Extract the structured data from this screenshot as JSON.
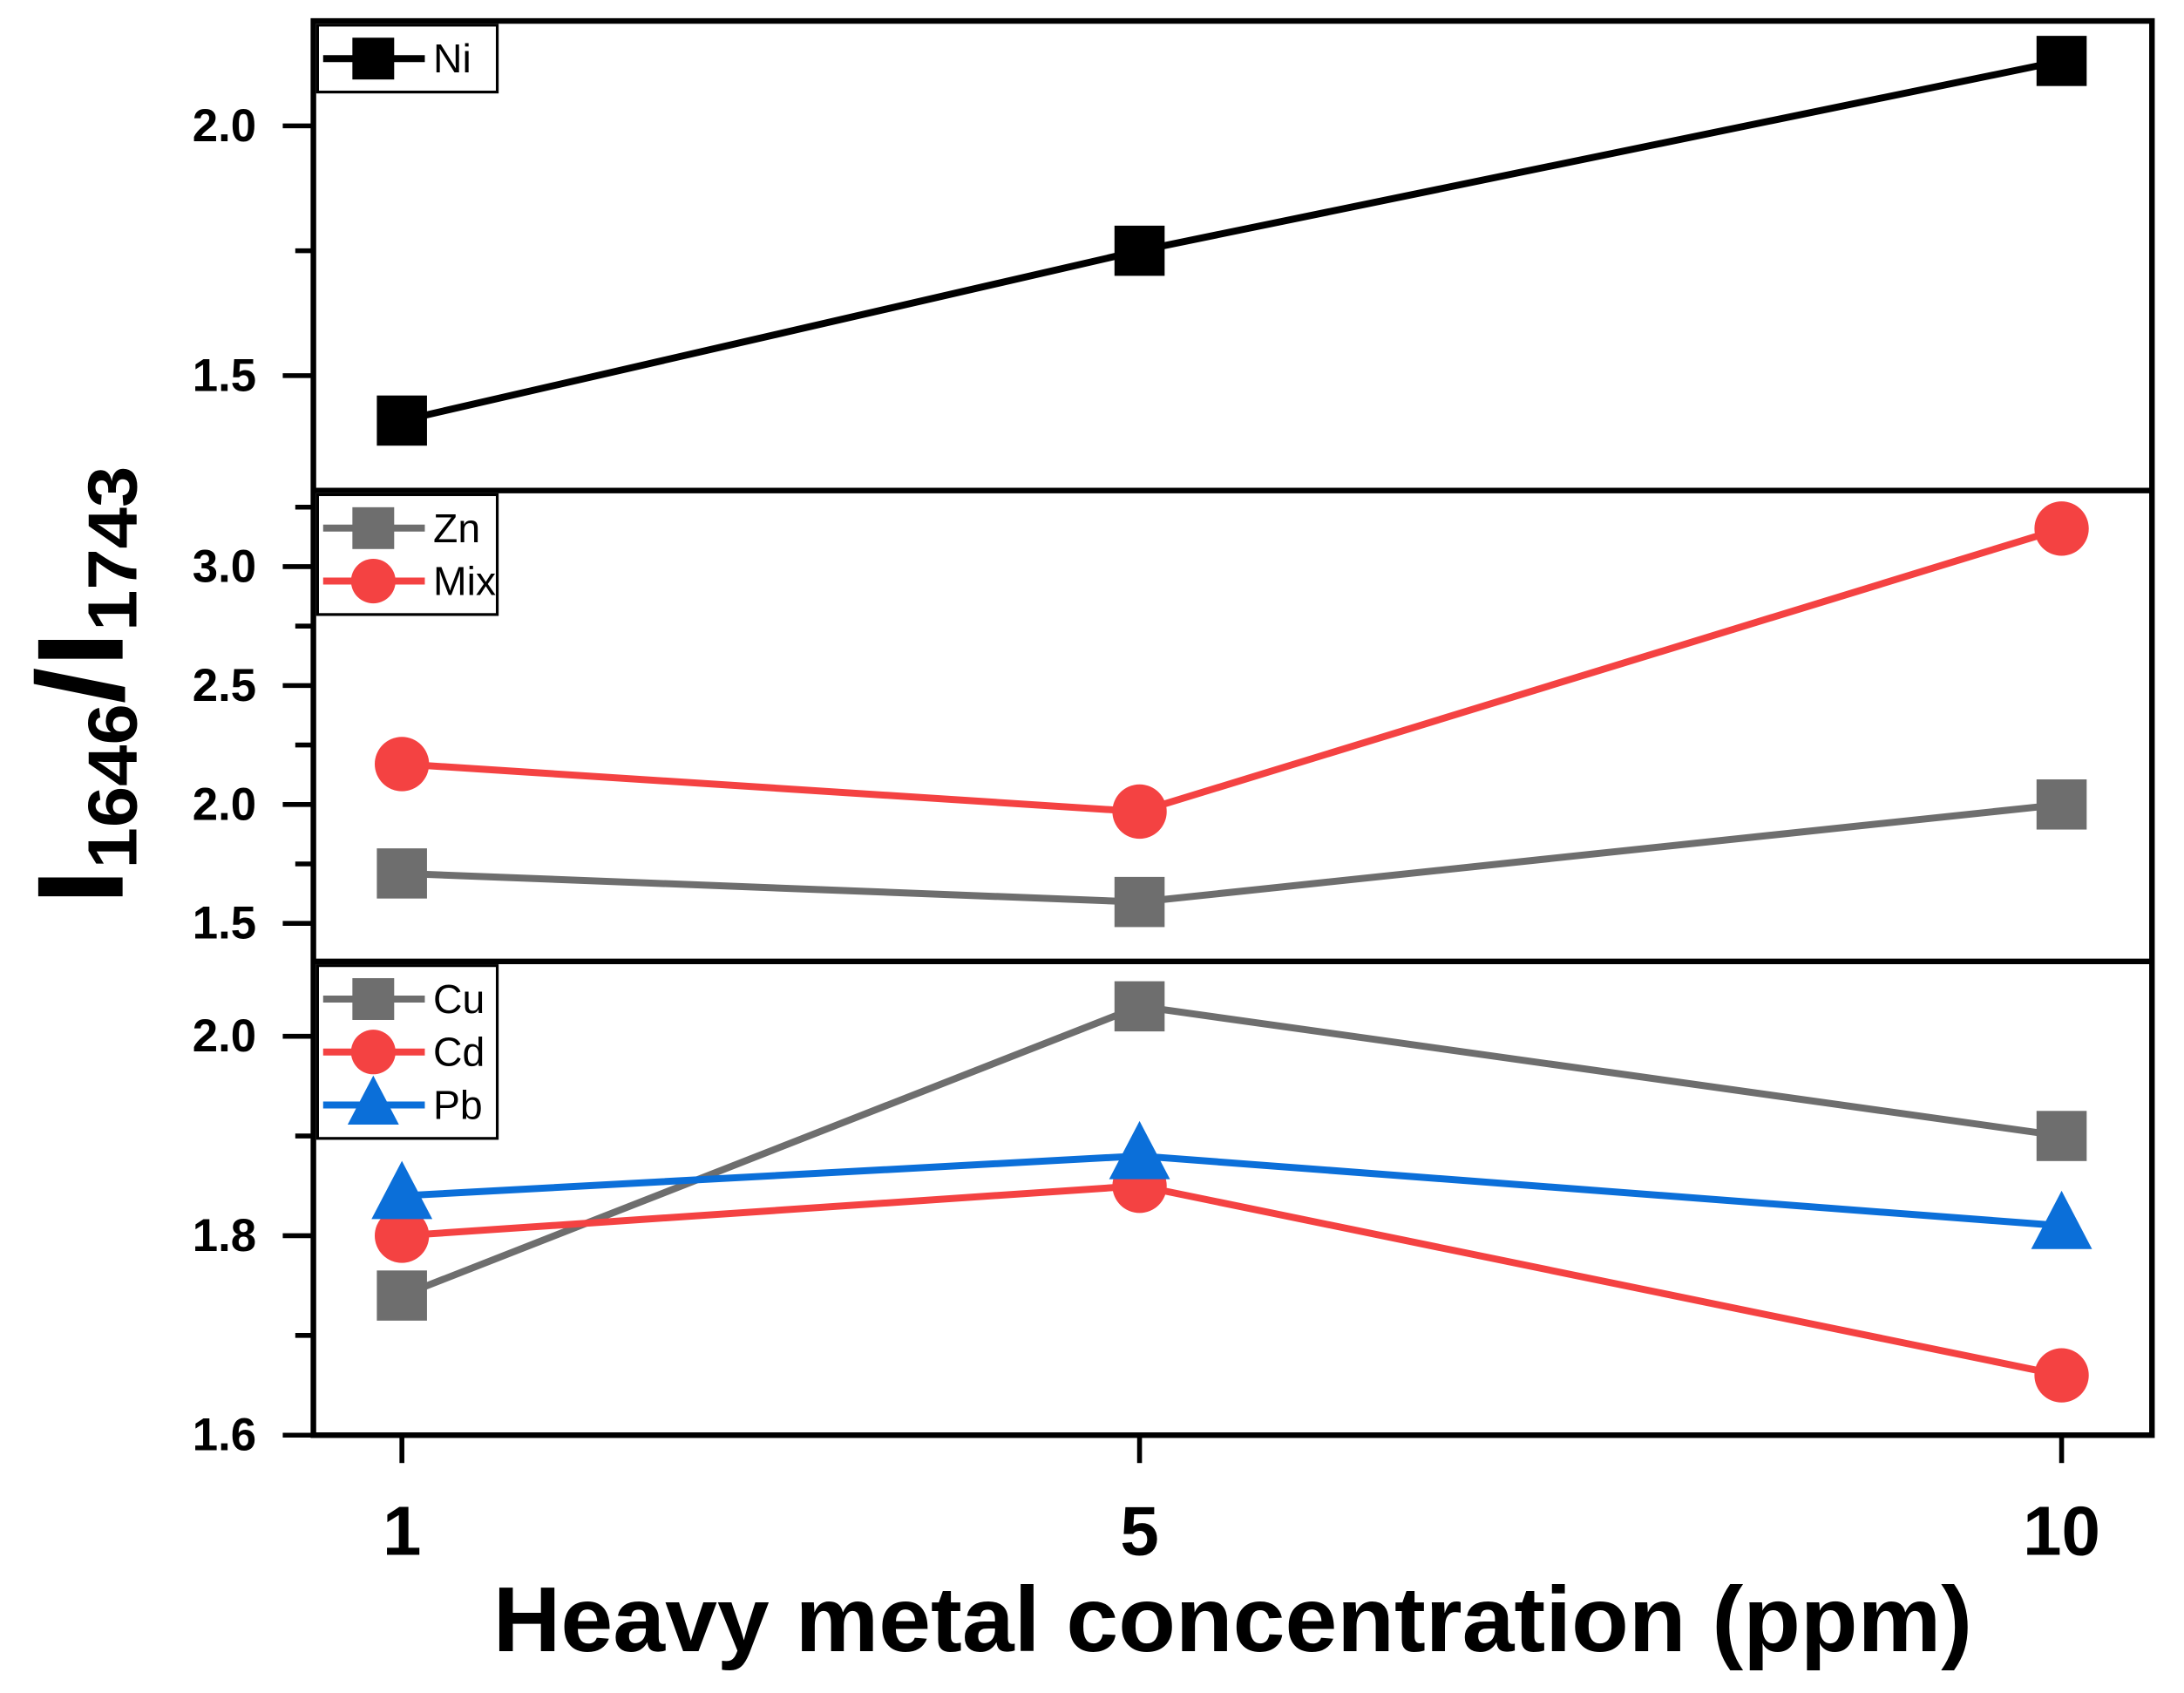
{
  "chart_data": {
    "type": "line",
    "xlabel": "Heavy metal concentration (ppm)",
    "ylabel": {
      "symbol_1": "I",
      "sub_1": "1646",
      "slash": "/",
      "symbol_2": "I",
      "sub_2": "1743"
    },
    "x_ticks": [
      1,
      5,
      10
    ],
    "x_tick_labels": [
      "1",
      "5",
      "10"
    ],
    "xlim": [
      0.52,
      10.49
    ],
    "grid": false,
    "legend_position": "top-left",
    "panels": [
      {
        "ylim": [
          1.27,
          2.21
        ],
        "y_ticks": [
          1.5,
          2.0
        ],
        "y_tick_labels": [
          "1.5",
          "2.0"
        ],
        "y_minor_ticks": [
          1.75
        ],
        "series": [
          {
            "name": "Ni",
            "color": "#000000",
            "marker": "square",
            "x": [
              1,
              5,
              10
            ],
            "values": [
              1.41,
              1.75,
              2.13
            ]
          }
        ]
      },
      {
        "ylim": [
          1.34,
          3.32
        ],
        "y_ticks": [
          1.5,
          2.0,
          2.5,
          3.0
        ],
        "y_tick_labels": [
          "1.5",
          "2.0",
          "2.5",
          "3.0"
        ],
        "y_minor_ticks": [
          1.75,
          2.25,
          2.75,
          3.25
        ],
        "series": [
          {
            "name": "Zn",
            "color": "#6e6e6e",
            "marker": "square",
            "x": [
              1,
              5,
              10
            ],
            "values": [
              1.71,
              1.59,
              2.0
            ]
          },
          {
            "name": "Mix",
            "color": "#f44242",
            "marker": "circle",
            "x": [
              1,
              5,
              10
            ],
            "values": [
              2.17,
              1.97,
              3.16
            ]
          }
        ]
      },
      {
        "ylim": [
          1.6,
          2.075
        ],
        "y_ticks": [
          1.6,
          1.8,
          2.0
        ],
        "y_tick_labels": [
          "1.6",
          "1.8",
          "2.0"
        ],
        "y_minor_ticks": [
          1.7,
          1.9
        ],
        "series": [
          {
            "name": "Cu",
            "color": "#6e6e6e",
            "marker": "square",
            "x": [
              1,
              5,
              10
            ],
            "values": [
              1.74,
              2.03,
              1.9
            ]
          },
          {
            "name": "Cd",
            "color": "#f44242",
            "marker": "circle",
            "x": [
              1,
              5,
              10
            ],
            "values": [
              1.8,
              1.85,
              1.66
            ]
          },
          {
            "name": "Pb",
            "color": "#0b6fd9",
            "marker": "triangle",
            "x": [
              1,
              5,
              10
            ],
            "values": [
              1.84,
              1.88,
              1.81
            ]
          }
        ]
      }
    ]
  }
}
